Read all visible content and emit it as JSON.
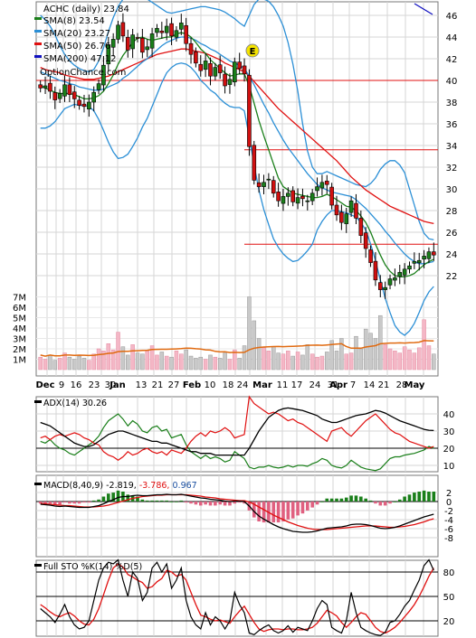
{
  "colors": {
    "sma8": "#1a7f1a",
    "sma20": "#2b8fd6",
    "sma50": "#e01010",
    "sma200": "#1010c0",
    "bollinger": "#2b8fd6",
    "sar": "#f0e000",
    "volume_up": "#f4b7c6",
    "volume_down": "#c9c9c9",
    "volume_ma": "#e06a10",
    "adx": "#000000",
    "plus_di": "#1a7f1a",
    "minus_di": "#e01010",
    "macd": "#000000",
    "signal": "#e01010",
    "hist_pos": "#1a7f1a",
    "hist_neg": "#e06080",
    "candle_up": "#1a7f1a",
    "candle_down": "#d01010"
  },
  "legend": {
    "title": "ACHC (daily) 23.84",
    "sma8": "SMA(8) 23.54",
    "sma20": "SMA(20) 23.27",
    "sma50": "SMA(50) 26.76",
    "sma200": "SMA(200) 47.12",
    "watermark": "OptionChance.com",
    "earnings_marker": "E"
  },
  "x_axis_labels": [
    "Dec",
    "9",
    "16",
    "23",
    "30",
    "Jan",
    "13",
    "21",
    "27",
    "Feb",
    "10",
    "18",
    "24",
    "Mar",
    "11",
    "17",
    "24",
    "31",
    "Apr",
    "7",
    "14",
    "21",
    "28",
    "May"
  ],
  "x_axis_bold": [
    "Dec",
    "Jan",
    "Feb",
    "Mar",
    "Apr",
    "May"
  ],
  "adx_panel": {
    "label": "ADX(14) 30.26",
    "ticks": [
      "40",
      "30",
      "20",
      "10"
    ]
  },
  "macd_panel": {
    "label_main": "MACD(8,40,9) -2.819,",
    "label_signal": "-3.786,",
    "label_hist": "0.967",
    "ticks": [
      "2",
      "0",
      "-2",
      "-4",
      "-6",
      "-8"
    ]
  },
  "sto_panel": {
    "label": "Full STO %K(14) %D(5)",
    "ticks": [
      "80",
      "50",
      "20"
    ]
  },
  "chart_data": {
    "type": "candlestick",
    "symbol": "ACHC",
    "title": "ACHC (daily) 23.84",
    "y_price_ticks": [
      22,
      24,
      26,
      28,
      30,
      32,
      34,
      36,
      38,
      40,
      42,
      44,
      46
    ],
    "y_volume_ticks": [
      "1M",
      "2M",
      "3M",
      "4M",
      "5M",
      "6M",
      "7M"
    ],
    "ylim": [
      19.5,
      47.5
    ],
    "resistance_lines": [
      40.0,
      33.6,
      24.9
    ],
    "close": [
      39.3,
      39.5,
      39.0,
      38.2,
      38.8,
      39.6,
      38.7,
      38.3,
      37.7,
      37.6,
      38.0,
      38.9,
      39.7,
      41.4,
      43.3,
      43.8,
      45.1,
      44.1,
      42.8,
      44.2,
      43.9,
      42.6,
      43.1,
      44.3,
      44.8,
      44.4,
      45.0,
      44.1,
      44.6,
      45.3,
      43.4,
      42.4,
      41.6,
      40.9,
      41.8,
      40.4,
      41.2,
      40.7,
      39.5,
      40.1,
      41.7,
      41.1,
      40.6,
      33.9,
      30.8,
      30.2,
      30.6,
      30.9,
      29.6,
      28.9,
      29.3,
      29.6,
      28.8,
      29.2,
      29.1,
      28.9,
      29.6,
      30.2,
      30.6,
      30.4,
      28.5,
      27.6,
      26.9,
      27.7,
      28.9,
      27.3,
      25.7,
      24.5,
      23.2,
      21.6,
      20.7,
      20.9,
      21.7,
      21.8,
      22.3,
      22.6,
      22.9,
      23.3,
      23.4,
      23.8,
      24.2,
      23.9
    ],
    "sma8": [
      39.5,
      39.3,
      39.1,
      38.9,
      38.8,
      38.8,
      38.8,
      38.7,
      38.5,
      38.3,
      38.3,
      38.4,
      38.6,
      39.0,
      39.7,
      40.5,
      41.5,
      42.3,
      42.9,
      43.5,
      43.9,
      44.0,
      43.8,
      43.7,
      43.8,
      43.9,
      44.0,
      44.0,
      44.3,
      44.4,
      44.3,
      44.0,
      43.5,
      42.9,
      42.5,
      41.9,
      41.5,
      41.1,
      40.7,
      40.4,
      40.5,
      40.6,
      40.6,
      39.5,
      37.9,
      36.3,
      34.9,
      33.6,
      32.3,
      31.0,
      30.2,
      29.9,
      29.6,
      29.5,
      29.4,
      29.3,
      29.2,
      29.2,
      29.3,
      29.5,
      29.3,
      29.0,
      28.7,
      28.4,
      28.3,
      28.0,
      27.5,
      26.9,
      26.0,
      24.9,
      23.9,
      23.0,
      22.4,
      22.0,
      21.9,
      21.9,
      22.0,
      22.2,
      22.6,
      23.0,
      23.3,
      23.5
    ],
    "sma20": [
      40.8,
      40.6,
      40.4,
      40.2,
      40.0,
      39.9,
      39.7,
      39.6,
      39.4,
      39.3,
      39.2,
      39.1,
      39.1,
      39.2,
      39.4,
      39.6,
      39.8,
      40.2,
      40.5,
      40.9,
      41.3,
      41.7,
      42.0,
      42.4,
      42.8,
      43.2,
      43.5,
      43.7,
      43.9,
      44.0,
      44.0,
      43.9,
      43.7,
      43.4,
      43.2,
      42.9,
      42.7,
      42.4,
      42.1,
      41.8,
      41.6,
      41.4,
      41.1,
      40.4,
      39.6,
      38.7,
      37.8,
      37.0,
      36.1,
      35.3,
      34.5,
      33.8,
      33.2,
      32.6,
      32.0,
      31.4,
      30.9,
      30.4,
      30.1,
      29.9,
      29.7,
      29.6,
      29.5,
      29.4,
      29.3,
      29.0,
      28.6,
      28.2,
      27.7,
      27.2,
      26.7,
      26.1,
      25.6,
      25.0,
      24.5,
      24.0,
      23.6,
      23.3,
      23.1,
      23.1,
      23.2,
      23.3
    ],
    "sma50": [
      41.2,
      41.0,
      40.9,
      40.8,
      40.7,
      40.5,
      40.4,
      40.3,
      40.2,
      40.1,
      40.1,
      40.1,
      40.2,
      40.3,
      40.4,
      40.6,
      40.8,
      41.0,
      41.2,
      41.4,
      41.6,
      41.8,
      42.0,
      42.2,
      42.4,
      42.5,
      42.6,
      42.7,
      42.8,
      42.9,
      42.9,
      42.8,
      42.7,
      42.6,
      42.5,
      42.3,
      42.1,
      41.9,
      41.6,
      41.4,
      41.2,
      41.0,
      40.8,
      40.4,
      39.9,
      39.4,
      38.9,
      38.4,
      37.9,
      37.4,
      37.0,
      36.6,
      36.2,
      35.8,
      35.4,
      35.0,
      34.6,
      34.2,
      33.8,
      33.4,
      33.0,
      32.6,
      32.1,
      31.6,
      31.1,
      30.7,
      30.3,
      29.9,
      29.6,
      29.3,
      29.0,
      28.7,
      28.4,
      28.2,
      28.0,
      27.8,
      27.6,
      27.4,
      27.2,
      27.0,
      26.9,
      26.8
    ],
    "bb_upper": [
      46.0,
      45.6,
      45.0,
      44.2,
      43.2,
      42.4,
      41.8,
      41.4,
      41.1,
      40.9,
      40.8,
      41.0,
      41.8,
      43.0,
      44.5,
      45.8,
      46.8,
      47.5,
      47.8,
      47.9,
      47.9,
      47.7,
      47.5,
      47.2,
      46.9,
      46.6,
      46.3,
      46.2,
      46.3,
      46.4,
      46.5,
      46.6,
      46.7,
      46.8,
      46.8,
      46.7,
      46.6,
      46.5,
      46.3,
      46.0,
      45.7,
      45.3,
      45.0,
      46.0,
      47.0,
      47.5,
      47.5,
      47.3,
      46.8,
      46.0,
      45.0,
      43.5,
      41.5,
      39.0,
      36.0,
      33.5,
      32.0,
      31.4,
      31.4,
      31.6,
      31.4,
      31.2,
      31.0,
      30.8,
      30.6,
      30.4,
      30.3,
      30.2,
      30.5,
      31.0,
      31.8,
      32.3,
      32.6,
      32.6,
      32.2,
      31.5,
      30.0,
      28.5,
      27.0,
      25.9,
      25.4,
      25.3
    ],
    "bb_lower": [
      35.6,
      35.6,
      35.8,
      36.2,
      36.8,
      37.4,
      37.6,
      37.8,
      37.7,
      37.7,
      37.6,
      37.2,
      36.4,
      35.4,
      34.3,
      33.4,
      32.8,
      32.9,
      33.2,
      33.9,
      34.7,
      35.7,
      36.5,
      37.6,
      38.7,
      39.8,
      40.7,
      41.2,
      41.5,
      41.6,
      41.5,
      41.2,
      40.7,
      40.0,
      39.6,
      39.1,
      38.8,
      38.3,
      37.9,
      37.6,
      37.5,
      37.5,
      37.2,
      34.8,
      32.2,
      29.9,
      28.1,
      26.7,
      25.4,
      24.6,
      24.0,
      23.6,
      23.3,
      23.4,
      23.8,
      24.3,
      24.9,
      26.2,
      27.0,
      27.6,
      28.0,
      28.0,
      27.9,
      27.8,
      27.6,
      27.4,
      26.9,
      26.2,
      24.9,
      23.4,
      21.6,
      19.9,
      18.6,
      17.4,
      16.8,
      16.5,
      16.9,
      17.6,
      18.6,
      19.7,
      20.5,
      21.0
    ],
    "volume_m": [
      1.2,
      1.0,
      1.4,
      0.9,
      1.1,
      1.6,
      1.2,
      1.0,
      1.3,
      1.1,
      0.9,
      1.5,
      2.0,
      1.8,
      2.5,
      1.9,
      3.6,
      2.2,
      1.4,
      2.4,
      1.6,
      1.5,
      1.8,
      2.3,
      1.4,
      1.7,
      1.3,
      1.2,
      1.8,
      1.5,
      1.9,
      1.3,
      1.1,
      1.2,
      1.0,
      1.4,
      1.2,
      1.1,
      1.6,
      1.0,
      1.9,
      1.1,
      2.3,
      7.0,
      4.7,
      3.0,
      2.1,
      1.8,
      2.2,
      1.6,
      1.5,
      1.8,
      1.3,
      1.7,
      1.4,
      2.4,
      1.5,
      1.2,
      1.3,
      1.7,
      2.8,
      1.8,
      3.0,
      1.5,
      1.6,
      3.2,
      2.0,
      3.9,
      3.5,
      3.0,
      5.2,
      2.4,
      2.0,
      1.8,
      1.6,
      2.2,
      1.9,
      1.6,
      2.1,
      4.8,
      2.3,
      1.5
    ],
    "adx": [
      35,
      34,
      33,
      31,
      29,
      27,
      25,
      23,
      22,
      21,
      21,
      22,
      24,
      26,
      28,
      29,
      30,
      30,
      29,
      28,
      27,
      26,
      25,
      24,
      24,
      23,
      23,
      22,
      21,
      20,
      19,
      18,
      18,
      17,
      17,
      17,
      16,
      16,
      16,
      16,
      16,
      16,
      16,
      20,
      25,
      30,
      34,
      38,
      40,
      42,
      43,
      43.5,
      43,
      42.5,
      42,
      41,
      40,
      39,
      37,
      36,
      35,
      35,
      36,
      37,
      38,
      39,
      39.5,
      40,
      41,
      42,
      41.5,
      40.5,
      39,
      37.5,
      36,
      35,
      34,
      33,
      32,
      31,
      30.5,
      30.3
    ],
    "plus_di": [
      24,
      23,
      25,
      22,
      20,
      19,
      17,
      16,
      18,
      20,
      22,
      24,
      27,
      32,
      36,
      38,
      40,
      37,
      33,
      36,
      34,
      30,
      29,
      32,
      33,
      30,
      31,
      26,
      27,
      28,
      22,
      18,
      16,
      14,
      16,
      14,
      15,
      14,
      12,
      13,
      18,
      16,
      14,
      9,
      8,
      9,
      9,
      10,
      9,
      8.5,
      9,
      10,
      9,
      10,
      10,
      9.5,
      11,
      12,
      14,
      13,
      10,
      9,
      8.5,
      10,
      13,
      11,
      9,
      8,
      7.5,
      7,
      8,
      11,
      14,
      15,
      15,
      16,
      16.5,
      17,
      18,
      19,
      21,
      20
    ],
    "minus_di": [
      26,
      27,
      25,
      27,
      28,
      27,
      28,
      29,
      28,
      26,
      25,
      23,
      22,
      18,
      16,
      15,
      13,
      15,
      18,
      16,
      17,
      19,
      20,
      18,
      17,
      18,
      16,
      19,
      18,
      17,
      20,
      24,
      27,
      29,
      27,
      30,
      29,
      30,
      32,
      30,
      26,
      27,
      28,
      50,
      46,
      44,
      42,
      40,
      41,
      40,
      38,
      36,
      37,
      35,
      34,
      32,
      30,
      28,
      26,
      24,
      30,
      31,
      32,
      29,
      27,
      30,
      33,
      36,
      38,
      40,
      37,
      34,
      31,
      29,
      28,
      26,
      24,
      23,
      22,
      21,
      20,
      21
    ],
    "macd": [
      -0.6,
      -0.7,
      -0.8,
      -1.0,
      -1.1,
      -1.0,
      -1.1,
      -1.2,
      -1.3,
      -1.3,
      -1.3,
      -1.1,
      -0.9,
      -0.5,
      0.0,
      0.4,
      0.9,
      1.1,
      1.1,
      1.3,
      1.4,
      1.3,
      1.3,
      1.4,
      1.5,
      1.5,
      1.6,
      1.5,
      1.5,
      1.6,
      1.4,
      1.2,
      1.0,
      0.8,
      0.7,
      0.5,
      0.4,
      0.3,
      0.1,
      0.0,
      0.1,
      0.1,
      0.0,
      -1.0,
      -2.2,
      -3.2,
      -3.9,
      -4.5,
      -5.1,
      -5.6,
      -6.0,
      -6.3,
      -6.6,
      -6.7,
      -6.8,
      -6.8,
      -6.7,
      -6.5,
      -6.2,
      -5.9,
      -5.8,
      -5.7,
      -5.6,
      -5.4,
      -5.1,
      -5.0,
      -5.0,
      -5.1,
      -5.3,
      -5.6,
      -5.9,
      -6.0,
      -5.9,
      -5.7,
      -5.4,
      -5.0,
      -4.6,
      -4.2,
      -3.8,
      -3.4,
      -3.1,
      -2.8
    ],
    "macd_signal": [
      -0.4,
      -0.5,
      -0.6,
      -0.7,
      -0.8,
      -0.9,
      -0.9,
      -1.0,
      -1.1,
      -1.2,
      -1.2,
      -1.2,
      -1.1,
      -1.0,
      -0.8,
      -0.5,
      -0.2,
      0.1,
      0.4,
      0.7,
      0.9,
      1.1,
      1.2,
      1.3,
      1.4,
      1.4,
      1.5,
      1.5,
      1.5,
      1.5,
      1.5,
      1.4,
      1.3,
      1.2,
      1.0,
      0.9,
      0.8,
      0.6,
      0.5,
      0.4,
      0.3,
      0.2,
      0.2,
      -0.1,
      -0.6,
      -1.2,
      -1.8,
      -2.4,
      -3.0,
      -3.5,
      -4.0,
      -4.5,
      -4.9,
      -5.3,
      -5.6,
      -5.9,
      -6.1,
      -6.2,
      -6.2,
      -6.2,
      -6.1,
      -6.0,
      -5.9,
      -5.8,
      -5.7,
      -5.6,
      -5.5,
      -5.4,
      -5.4,
      -5.4,
      -5.5,
      -5.6,
      -5.7,
      -5.7,
      -5.6,
      -5.5,
      -5.3,
      -5.1,
      -4.8,
      -4.5,
      -4.1,
      -3.8
    ],
    "sto_k": [
      35,
      30,
      25,
      18,
      28,
      40,
      25,
      15,
      10,
      12,
      20,
      45,
      70,
      85,
      92,
      90,
      95,
      70,
      50,
      80,
      72,
      45,
      55,
      85,
      92,
      80,
      90,
      60,
      70,
      85,
      45,
      25,
      15,
      10,
      30,
      15,
      25,
      20,
      10,
      20,
      55,
      40,
      30,
      5,
      3,
      8,
      12,
      15,
      8,
      5,
      8,
      14,
      6,
      12,
      10,
      8,
      20,
      35,
      45,
      40,
      12,
      8,
      5,
      20,
      55,
      30,
      12,
      8,
      5,
      3,
      2,
      6,
      18,
      20,
      28,
      38,
      45,
      58,
      70,
      88,
      95,
      82
    ],
    "sto_d": [
      40,
      36,
      31,
      27,
      25,
      28,
      30,
      26,
      20,
      16,
      15,
      22,
      35,
      52,
      70,
      85,
      90,
      86,
      77,
      74,
      70,
      67,
      60,
      62,
      68,
      72,
      82,
      80,
      75,
      77,
      70,
      55,
      40,
      27,
      25,
      22,
      20,
      21,
      19,
      17,
      25,
      32,
      38,
      28,
      18,
      10,
      7,
      9,
      10,
      10,
      9,
      10,
      10,
      9,
      9,
      10,
      12,
      17,
      25,
      33,
      30,
      26,
      18,
      12,
      18,
      25,
      30,
      28,
      20,
      12,
      7,
      5,
      8,
      12,
      18,
      25,
      32,
      40,
      50,
      62,
      75,
      85
    ]
  }
}
